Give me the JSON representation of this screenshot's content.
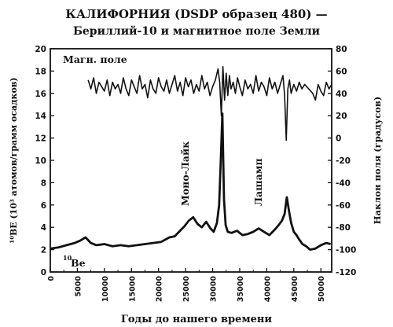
{
  "chart_data": {
    "type": "line",
    "title": "КАЛИФОРНИЯ (DSDP образец 480) —",
    "subtitle": "Бериллий-10 и магнитное поле Земли",
    "xlabel": "Годы до нашего времени",
    "ylabel_left": "¹⁰BE (10³ атомов/грамм осадков)",
    "ylabel_right": "Наклон поля (градусов)",
    "xlim": [
      0,
      52000
    ],
    "ylim_left": [
      0,
      20
    ],
    "ylim_right": [
      -120,
      80
    ],
    "x_ticks": [
      "0",
      "5000",
      "10000",
      "15000",
      "20000",
      "25000",
      "30000",
      "35000",
      "40000",
      "45000",
      "50000"
    ],
    "y_left_ticks": [
      "0",
      "2",
      "4",
      "6",
      "8",
      "10",
      "12",
      "14",
      "16",
      "18",
      "20"
    ],
    "y_right_ticks": [
      "-120",
      "-100",
      "-80",
      "-60",
      "-40",
      "-20",
      "0",
      "20",
      "40",
      "60",
      "80"
    ],
    "annotations": {
      "magnetic_label": "Магн. поле",
      "be_label_sup": "10",
      "be_label": "Be",
      "event1": "Моно-Лайк",
      "event2": "Лашамп"
    },
    "series": [
      {
        "axis": "left",
        "x": [
          0,
          1500,
          3000,
          4500,
          5500,
          6500,
          7500,
          8500,
          10000,
          11500,
          13000,
          14500,
          16000,
          17500,
          19000,
          20500,
          22000,
          23000,
          24000,
          24800,
          25600,
          26400,
          27200,
          28000,
          28800,
          29600,
          30200,
          30800,
          31200,
          31500,
          31800,
          32100,
          32400,
          32800,
          33500,
          34500,
          35500,
          36500,
          37500,
          38500,
          39500,
          40500,
          41500,
          42200,
          42800,
          43300,
          43700,
          44100,
          44500,
          45000,
          45500,
          46000,
          46600,
          47300,
          48000,
          49000,
          50000,
          51000,
          51800
        ],
        "values": [
          2.1,
          2.2,
          2.4,
          2.6,
          2.8,
          3.1,
          2.6,
          2.4,
          2.5,
          2.3,
          2.4,
          2.3,
          2.4,
          2.5,
          2.6,
          2.7,
          3.1,
          3.2,
          3.7,
          4.1,
          4.6,
          4.9,
          4.3,
          4.0,
          4.5,
          3.9,
          3.6,
          4.4,
          6.0,
          10.0,
          14.2,
          6.5,
          4.2,
          3.6,
          3.5,
          3.7,
          3.3,
          3.4,
          3.6,
          3.9,
          3.6,
          3.3,
          3.8,
          4.2,
          4.6,
          5.2,
          6.7,
          5.5,
          4.4,
          3.6,
          3.3,
          2.9,
          2.5,
          2.3,
          2.0,
          2.1,
          2.4,
          2.6,
          2.5
        ]
      },
      {
        "axis": "right",
        "x": [
          7000,
          7500,
          8000,
          8500,
          9000,
          9500,
          10000,
          10500,
          11000,
          11500,
          12000,
          12500,
          13000,
          13500,
          14000,
          14500,
          15000,
          15500,
          16000,
          16500,
          17000,
          17500,
          18000,
          18500,
          19000,
          19500,
          20000,
          20500,
          21000,
          21500,
          22000,
          22500,
          23000,
          23500,
          24000,
          24500,
          25000,
          25500,
          26000,
          26500,
          27000,
          27500,
          28000,
          28500,
          29000,
          29500,
          30000,
          30500,
          31000,
          31300,
          31600,
          31900,
          32200,
          32500,
          32800,
          33100,
          33400,
          33800,
          34200,
          34600,
          35000,
          35500,
          36000,
          36500,
          37000,
          37500,
          38000,
          38500,
          39000,
          39500,
          40000,
          40500,
          41000,
          41500,
          42000,
          42500,
          43000,
          43300,
          43600,
          43900,
          44200,
          44500,
          45000,
          45500,
          46000,
          46500,
          47000,
          48500,
          49000,
          49500,
          50000,
          50500,
          51000,
          51500,
          52000
        ],
        "values": [
          52,
          44,
          54,
          40,
          50,
          46,
          42,
          52,
          38,
          50,
          44,
          48,
          40,
          54,
          44,
          38,
          52,
          46,
          40,
          56,
          44,
          48,
          36,
          52,
          44,
          40,
          54,
          46,
          42,
          52,
          40,
          48,
          56,
          42,
          50,
          38,
          54,
          46,
          52,
          40,
          48,
          42,
          56,
          44,
          50,
          38,
          46,
          52,
          62,
          50,
          20,
          64,
          34,
          58,
          38,
          56,
          44,
          50,
          40,
          54,
          46,
          38,
          52,
          44,
          48,
          40,
          56,
          42,
          50,
          46,
          38,
          54,
          44,
          50,
          40,
          48,
          56,
          38,
          -2,
          44,
          52,
          40,
          48,
          42,
          50,
          44,
          48,
          40,
          34,
          48,
          42,
          38,
          50,
          44,
          48
        ]
      }
    ]
  }
}
